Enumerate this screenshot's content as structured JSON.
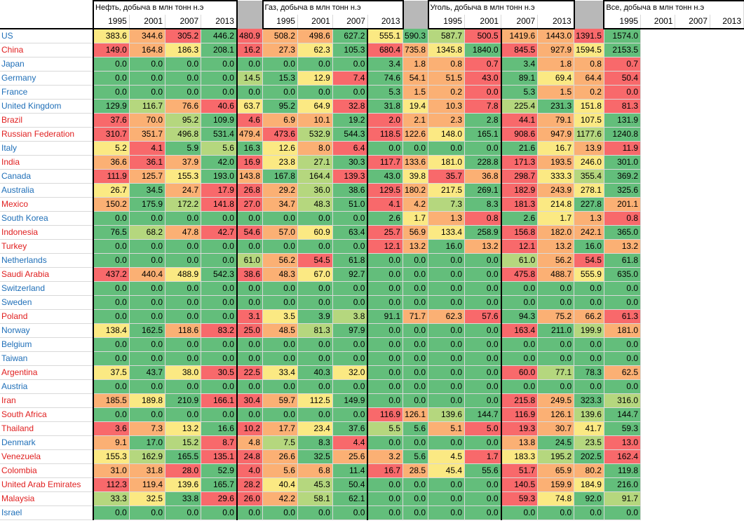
{
  "groups": [
    {
      "title": "Нефть, добыча в млн тонн н.э"
    },
    {
      "title": "Газ, добыча в млн тонн н.э"
    },
    {
      "title": "Уголь, добыча в млн тонн н.э"
    },
    {
      "title": "Все, добыча в млн тонн н.э"
    }
  ],
  "years": [
    "1995",
    "2001",
    "2007",
    "2013"
  ],
  "colors": {
    "green": "#63be7b",
    "lightgreen": "#b5d77e",
    "yellow": "#fbe983",
    "orange": "#fbb074",
    "red": "#f8696b",
    "blue_text": "#1f6fb8",
    "red_text": "#e02020"
  },
  "rows": [
    {
      "country": "US",
      "red": false,
      "oil": [
        "383.6",
        "344.6",
        "305.2",
        "446.2"
      ],
      "gas": [
        "480.9",
        "508.2",
        "498.6",
        "627.2"
      ],
      "coal": [
        "555.1",
        "590.3",
        "587.7",
        "500.5"
      ],
      "all": [
        "1419.6",
        "1443.0",
        "1391.5",
        "1574.0"
      ]
    },
    {
      "country": "China",
      "red": true,
      "oil": [
        "149.0",
        "164.8",
        "186.3",
        "208.1"
      ],
      "gas": [
        "16.2",
        "27.3",
        "62.3",
        "105.3"
      ],
      "coal": [
        "680.4",
        "735.8",
        "1345.8",
        "1840.0"
      ],
      "all": [
        "845.5",
        "927.9",
        "1594.5",
        "2153.5"
      ]
    },
    {
      "country": "Japan",
      "red": false,
      "oil": [
        "0.0",
        "0.0",
        "0.0",
        "0.0"
      ],
      "gas": [
        "0.0",
        "0.0",
        "0.0",
        "0.0"
      ],
      "coal": [
        "3.4",
        "1.8",
        "0.8",
        "0.7"
      ],
      "all": [
        "3.4",
        "1.8",
        "0.8",
        "0.7"
      ]
    },
    {
      "country": "Germany",
      "red": false,
      "oil": [
        "0.0",
        "0.0",
        "0.0",
        "0.0"
      ],
      "gas": [
        "14.5",
        "15.3",
        "12.9",
        "7.4"
      ],
      "coal": [
        "74.6",
        "54.1",
        "51.5",
        "43.0"
      ],
      "all": [
        "89.1",
        "69.4",
        "64.4",
        "50.4"
      ]
    },
    {
      "country": "France",
      "red": false,
      "oil": [
        "0.0",
        "0.0",
        "0.0",
        "0.0"
      ],
      "gas": [
        "0.0",
        "0.0",
        "0.0",
        "0.0"
      ],
      "coal": [
        "5.3",
        "1.5",
        "0.2",
        "0.0"
      ],
      "all": [
        "5.3",
        "1.5",
        "0.2",
        "0.0"
      ]
    },
    {
      "country": "United Kingdom",
      "red": false,
      "oil": [
        "129.9",
        "116.7",
        "76.6",
        "40.6"
      ],
      "gas": [
        "63.7",
        "95.2",
        "64.9",
        "32.8"
      ],
      "coal": [
        "31.8",
        "19.4",
        "10.3",
        "7.8"
      ],
      "all": [
        "225.4",
        "231.3",
        "151.8",
        "81.3"
      ]
    },
    {
      "country": "Brazil",
      "red": true,
      "oil": [
        "37.6",
        "70.0",
        "95.2",
        "109.9"
      ],
      "gas": [
        "4.6",
        "6.9",
        "10.1",
        "19.2"
      ],
      "coal": [
        "2.0",
        "2.1",
        "2.3",
        "2.8"
      ],
      "all": [
        "44.1",
        "79.1",
        "107.5",
        "131.9"
      ]
    },
    {
      "country": "Russian Federation",
      "red": true,
      "oil": [
        "310.7",
        "351.7",
        "496.8",
        "531.4"
      ],
      "gas": [
        "479.4",
        "473.6",
        "532.9",
        "544.3"
      ],
      "coal": [
        "118.5",
        "122.6",
        "148.0",
        "165.1"
      ],
      "all": [
        "908.6",
        "947.9",
        "1177.6",
        "1240.8"
      ]
    },
    {
      "country": "Italy",
      "red": false,
      "oil": [
        "5.2",
        "4.1",
        "5.9",
        "5.6"
      ],
      "gas": [
        "16.3",
        "12.6",
        "8.0",
        "6.4"
      ],
      "coal": [
        "0.0",
        "0.0",
        "0.0",
        "0.0"
      ],
      "all": [
        "21.6",
        "16.7",
        "13.9",
        "11.9"
      ]
    },
    {
      "country": "India",
      "red": true,
      "oil": [
        "36.6",
        "36.1",
        "37.9",
        "42.0"
      ],
      "gas": [
        "16.9",
        "23.8",
        "27.1",
        "30.3"
      ],
      "coal": [
        "117.7",
        "133.6",
        "181.0",
        "228.8"
      ],
      "all": [
        "171.3",
        "193.5",
        "246.0",
        "301.0"
      ]
    },
    {
      "country": "Canada",
      "red": false,
      "oil": [
        "111.9",
        "125.7",
        "155.3",
        "193.0"
      ],
      "gas": [
        "143.8",
        "167.8",
        "164.4",
        "139.3"
      ],
      "coal": [
        "43.0",
        "39.8",
        "35.7",
        "36.8"
      ],
      "all": [
        "298.7",
        "333.3",
        "355.4",
        "369.2"
      ]
    },
    {
      "country": "Australia",
      "red": false,
      "oil": [
        "26.7",
        "34.5",
        "24.7",
        "17.9"
      ],
      "gas": [
        "26.8",
        "29.2",
        "36.0",
        "38.6"
      ],
      "coal": [
        "129.5",
        "180.2",
        "217.5",
        "269.1"
      ],
      "all": [
        "182.9",
        "243.9",
        "278.1",
        "325.6"
      ]
    },
    {
      "country": "Mexico",
      "red": true,
      "oil": [
        "150.2",
        "175.9",
        "172.2",
        "141.8"
      ],
      "gas": [
        "27.0",
        "34.7",
        "48.3",
        "51.0"
      ],
      "coal": [
        "4.1",
        "4.2",
        "7.3",
        "8.3"
      ],
      "all": [
        "181.3",
        "214.8",
        "227.8",
        "201.1"
      ]
    },
    {
      "country": "South Korea",
      "red": false,
      "oil": [
        "0.0",
        "0.0",
        "0.0",
        "0.0"
      ],
      "gas": [
        "0.0",
        "0.0",
        "0.0",
        "0.0"
      ],
      "coal": [
        "2.6",
        "1.7",
        "1.3",
        "0.8"
      ],
      "all": [
        "2.6",
        "1.7",
        "1.3",
        "0.8"
      ]
    },
    {
      "country": "Indonesia",
      "red": true,
      "oil": [
        "76.5",
        "68.2",
        "47.8",
        "42.7"
      ],
      "gas": [
        "54.6",
        "57.0",
        "60.9",
        "63.4"
      ],
      "coal": [
        "25.7",
        "56.9",
        "133.4",
        "258.9"
      ],
      "all": [
        "156.8",
        "182.0",
        "242.1",
        "365.0"
      ]
    },
    {
      "country": "Turkey",
      "red": true,
      "oil": [
        "0.0",
        "0.0",
        "0.0",
        "0.0"
      ],
      "gas": [
        "0.0",
        "0.0",
        "0.0",
        "0.0"
      ],
      "coal": [
        "12.1",
        "13.2",
        "16.0",
        "13.2"
      ],
      "all": [
        "12.1",
        "13.2",
        "16.0",
        "13.2"
      ]
    },
    {
      "country": "Netherlands",
      "red": false,
      "oil": [
        "0.0",
        "0.0",
        "0.0",
        "0.0"
      ],
      "gas": [
        "61.0",
        "56.2",
        "54.5",
        "61.8"
      ],
      "coal": [
        "0.0",
        "0.0",
        "0.0",
        "0.0"
      ],
      "all": [
        "61.0",
        "56.2",
        "54.5",
        "61.8"
      ]
    },
    {
      "country": "Saudi Arabia",
      "red": true,
      "oil": [
        "437.2",
        "440.4",
        "488.9",
        "542.3"
      ],
      "gas": [
        "38.6",
        "48.3",
        "67.0",
        "92.7"
      ],
      "coal": [
        "0.0",
        "0.0",
        "0.0",
        "0.0"
      ],
      "all": [
        "475.8",
        "488.7",
        "555.9",
        "635.0"
      ]
    },
    {
      "country": "Switzerland",
      "red": false,
      "oil": [
        "0.0",
        "0.0",
        "0.0",
        "0.0"
      ],
      "gas": [
        "0.0",
        "0.0",
        "0.0",
        "0.0"
      ],
      "coal": [
        "0.0",
        "0.0",
        "0.0",
        "0.0"
      ],
      "all": [
        "0.0",
        "0.0",
        "0.0",
        "0.0"
      ]
    },
    {
      "country": "Sweden",
      "red": false,
      "oil": [
        "0.0",
        "0.0",
        "0.0",
        "0.0"
      ],
      "gas": [
        "0.0",
        "0.0",
        "0.0",
        "0.0"
      ],
      "coal": [
        "0.0",
        "0.0",
        "0.0",
        "0.0"
      ],
      "all": [
        "0.0",
        "0.0",
        "0.0",
        "0.0"
      ]
    },
    {
      "country": "Poland",
      "red": true,
      "oil": [
        "0.0",
        "0.0",
        "0.0",
        "0.0"
      ],
      "gas": [
        "3.1",
        "3.5",
        "3.9",
        "3.8"
      ],
      "coal": [
        "91.1",
        "71.7",
        "62.3",
        "57.6"
      ],
      "all": [
        "94.3",
        "75.2",
        "66.2",
        "61.3"
      ]
    },
    {
      "country": "Norway",
      "red": false,
      "oil": [
        "138.4",
        "162.5",
        "118.6",
        "83.2"
      ],
      "gas": [
        "25.0",
        "48.5",
        "81.3",
        "97.9"
      ],
      "coal": [
        "0.0",
        "0.0",
        "0.0",
        "0.0"
      ],
      "all": [
        "163.4",
        "211.0",
        "199.9",
        "181.0"
      ]
    },
    {
      "country": "Belgium",
      "red": false,
      "oil": [
        "0.0",
        "0.0",
        "0.0",
        "0.0"
      ],
      "gas": [
        "0.0",
        "0.0",
        "0.0",
        "0.0"
      ],
      "coal": [
        "0.0",
        "0.0",
        "0.0",
        "0.0"
      ],
      "all": [
        "0.0",
        "0.0",
        "0.0",
        "0.0"
      ]
    },
    {
      "country": "Taiwan",
      "red": false,
      "oil": [
        "0.0",
        "0.0",
        "0.0",
        "0.0"
      ],
      "gas": [
        "0.0",
        "0.0",
        "0.0",
        "0.0"
      ],
      "coal": [
        "0.0",
        "0.0",
        "0.0",
        "0.0"
      ],
      "all": [
        "0.0",
        "0.0",
        "0.0",
        "0.0"
      ]
    },
    {
      "country": "Argentina",
      "red": true,
      "oil": [
        "37.5",
        "43.7",
        "38.0",
        "30.5"
      ],
      "gas": [
        "22.5",
        "33.4",
        "40.3",
        "32.0"
      ],
      "coal": [
        "0.0",
        "0.0",
        "0.0",
        "0.0"
      ],
      "all": [
        "60.0",
        "77.1",
        "78.3",
        "62.5"
      ]
    },
    {
      "country": "Austria",
      "red": false,
      "oil": [
        "0.0",
        "0.0",
        "0.0",
        "0.0"
      ],
      "gas": [
        "0.0",
        "0.0",
        "0.0",
        "0.0"
      ],
      "coal": [
        "0.0",
        "0.0",
        "0.0",
        "0.0"
      ],
      "all": [
        "0.0",
        "0.0",
        "0.0",
        "0.0"
      ]
    },
    {
      "country": "Iran",
      "red": true,
      "oil": [
        "185.5",
        "189.8",
        "210.9",
        "166.1"
      ],
      "gas": [
        "30.4",
        "59.7",
        "112.5",
        "149.9"
      ],
      "coal": [
        "0.0",
        "0.0",
        "0.0",
        "0.0"
      ],
      "all": [
        "215.8",
        "249.5",
        "323.3",
        "316.0"
      ]
    },
    {
      "country": "South Africa",
      "red": true,
      "oil": [
        "0.0",
        "0.0",
        "0.0",
        "0.0"
      ],
      "gas": [
        "0.0",
        "0.0",
        "0.0",
        "0.0"
      ],
      "coal": [
        "116.9",
        "126.1",
        "139.6",
        "144.7"
      ],
      "all": [
        "116.9",
        "126.1",
        "139.6",
        "144.7"
      ]
    },
    {
      "country": "Thailand",
      "red": true,
      "oil": [
        "3.6",
        "7.3",
        "13.2",
        "16.6"
      ],
      "gas": [
        "10.2",
        "17.7",
        "23.4",
        "37.6"
      ],
      "coal": [
        "5.5",
        "5.6",
        "5.1",
        "5.0"
      ],
      "all": [
        "19.3",
        "30.7",
        "41.7",
        "59.3"
      ]
    },
    {
      "country": "Denmark",
      "red": false,
      "oil": [
        "9.1",
        "17.0",
        "15.2",
        "8.7"
      ],
      "gas": [
        "4.8",
        "7.5",
        "8.3",
        "4.4"
      ],
      "coal": [
        "0.0",
        "0.0",
        "0.0",
        "0.0"
      ],
      "all": [
        "13.8",
        "24.5",
        "23.5",
        "13.0"
      ]
    },
    {
      "country": "Venezuela",
      "red": true,
      "oil": [
        "155.3",
        "162.9",
        "165.5",
        "135.1"
      ],
      "gas": [
        "24.8",
        "26.6",
        "32.5",
        "25.6"
      ],
      "coal": [
        "3.2",
        "5.6",
        "4.5",
        "1.7"
      ],
      "all": [
        "183.3",
        "195.2",
        "202.5",
        "162.4"
      ]
    },
    {
      "country": "Colombia",
      "red": true,
      "oil": [
        "31.0",
        "31.8",
        "28.0",
        "52.9"
      ],
      "gas": [
        "4.0",
        "5.6",
        "6.8",
        "11.4"
      ],
      "coal": [
        "16.7",
        "28.5",
        "45.4",
        "55.6"
      ],
      "all": [
        "51.7",
        "65.9",
        "80.2",
        "119.8"
      ]
    },
    {
      "country": "United Arab Emirates",
      "red": true,
      "oil": [
        "112.3",
        "119.4",
        "139.6",
        "165.7"
      ],
      "gas": [
        "28.2",
        "40.4",
        "45.3",
        "50.4"
      ],
      "coal": [
        "0.0",
        "0.0",
        "0.0",
        "0.0"
      ],
      "all": [
        "140.5",
        "159.9",
        "184.9",
        "216.0"
      ]
    },
    {
      "country": "Malaysia",
      "red": true,
      "oil": [
        "33.3",
        "32.5",
        "33.8",
        "29.6"
      ],
      "gas": [
        "26.0",
        "42.2",
        "58.1",
        "62.1"
      ],
      "coal": [
        "0.0",
        "0.0",
        "0.0",
        "0.0"
      ],
      "all": [
        "59.3",
        "74.8",
        "92.0",
        "91.7"
      ]
    },
    {
      "country": "Israel",
      "red": false,
      "oil": [
        "0.0",
        "0.0",
        "0.0",
        "0.0"
      ],
      "gas": [
        "0.0",
        "0.0",
        "0.0",
        "0.0"
      ],
      "coal": [
        "0.0",
        "0.0",
        "0.0",
        "0.0"
      ],
      "all": [
        "0.0",
        "0.0",
        "0.0",
        "0.0"
      ]
    }
  ]
}
